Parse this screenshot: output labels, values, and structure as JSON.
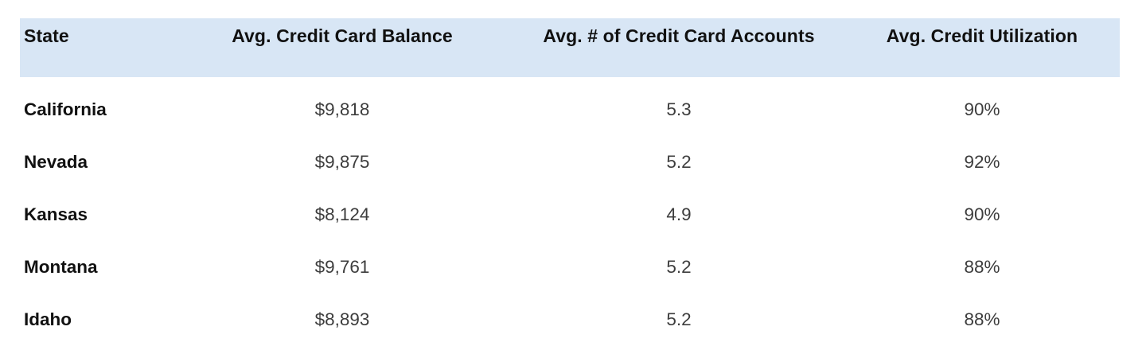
{
  "chart_data": {
    "type": "table",
    "title": "",
    "columns": [
      "State",
      "Avg. Credit Card Balance",
      "Avg. # of Credit Card Accounts",
      "Avg. Credit Utilization"
    ],
    "rows": [
      [
        "California",
        "$9,818",
        "5.3",
        "90%"
      ],
      [
        "Nevada",
        "$9,875",
        "5.2",
        "92%"
      ],
      [
        "Kansas",
        "$8,124",
        "4.9",
        "90%"
      ],
      [
        "Montana",
        "$9,761",
        "5.2",
        "88%"
      ],
      [
        "Idaho",
        "$8,893",
        "5.2",
        "88%"
      ]
    ],
    "numeric_series": [
      {
        "name": "Avg. Credit Card Balance (USD)",
        "values": [
          9818,
          9875,
          8124,
          9761,
          8893
        ]
      },
      {
        "name": "Avg. # of Credit Card Accounts",
        "values": [
          5.3,
          5.2,
          4.9,
          5.2,
          5.2
        ]
      },
      {
        "name": "Avg. Credit Utilization (%)",
        "values": [
          90,
          92,
          90,
          88,
          88
        ]
      }
    ]
  },
  "colors": {
    "header_background": "#d8e6f5",
    "header_text": "#111111",
    "state_text": "#111111",
    "value_text": "#3d3d3d",
    "page_background": "#ffffff"
  }
}
